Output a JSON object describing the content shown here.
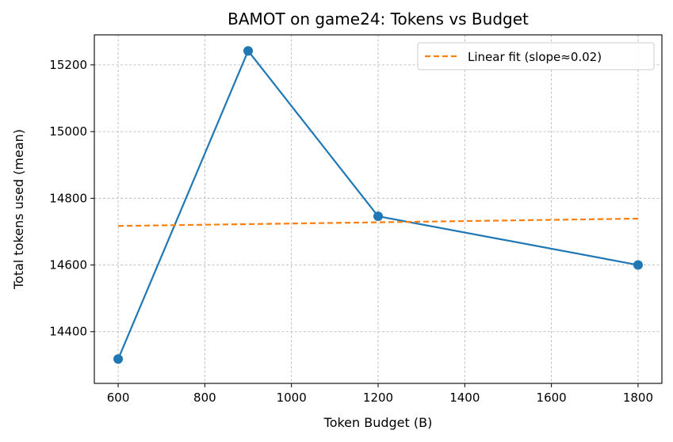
{
  "chart_data": {
    "type": "line",
    "title": "BAMOT on game24: Tokens vs Budget",
    "xlabel": "Token Budget (B)",
    "ylabel": "Total tokens used (mean)",
    "xlim": [
      545,
      1855
    ],
    "ylim": [
      14245,
      15290
    ],
    "xticks": [
      600,
      800,
      1000,
      1200,
      1400,
      1600,
      1800
    ],
    "yticks": [
      14400,
      14600,
      14800,
      15000,
      15200
    ],
    "grid": true,
    "legend_position": "top-right",
    "series": [
      {
        "kind": "line-markers",
        "color": "#1f77b4",
        "x": [
          600,
          900,
          1200,
          1800
        ],
        "y": [
          14318,
          15242,
          14746,
          14600
        ]
      },
      {
        "name": "Linear fit (slope≈0.02)",
        "kind": "dashed-line",
        "color": "#ff7f0e",
        "x": [
          600,
          1800
        ],
        "y": [
          14717,
          14739
        ]
      }
    ]
  }
}
